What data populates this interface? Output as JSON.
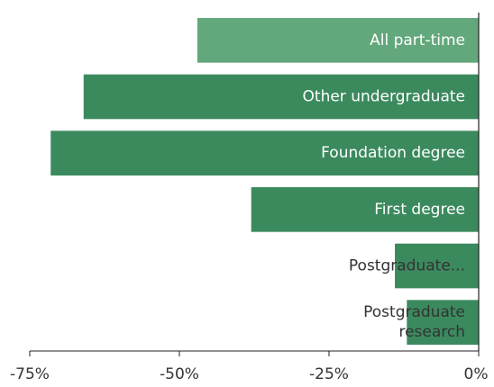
{
  "chart_data": {
    "type": "barh",
    "categories": [
      "All part-time",
      "Other undergraduate",
      "Foundation degree",
      "First degree",
      "Postgraduate...",
      "Postgraduate research"
    ],
    "values": [
      -47,
      -66,
      -71.5,
      -38,
      -14,
      -12
    ],
    "colors": [
      "#63a87c",
      "#3b8a5e",
      "#3b8a5e",
      "#3b8a5e",
      "#3b8a5e",
      "#3b8a5e"
    ],
    "xlim": [
      -75,
      0
    ],
    "xticks": [
      {
        "value": -75,
        "label": "-75%"
      },
      {
        "value": -50,
        "label": "-50%"
      },
      {
        "value": -25,
        "label": "-25%"
      },
      {
        "value": 0,
        "label": "0%"
      }
    ],
    "grid": false
  }
}
